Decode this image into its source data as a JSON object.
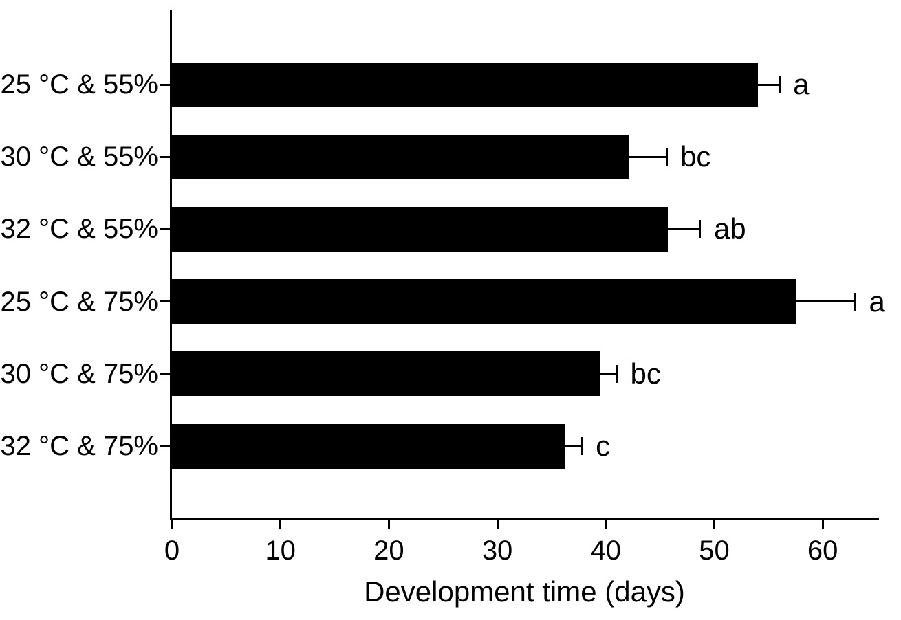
{
  "chart_data": {
    "type": "bar",
    "orientation": "horizontal",
    "title": "",
    "xlabel": "Development time (days)",
    "ylabel": "",
    "xlim": [
      0,
      65
    ],
    "xticks": [
      0,
      10,
      20,
      30,
      40,
      50,
      60
    ],
    "grid": false,
    "legend": "none",
    "bar_color": "#000000",
    "axis_color": "#000000",
    "categories": [
      "25 °C & 55%",
      "30 °C & 55%",
      "32 °C & 55%",
      "25 °C & 75%",
      "30 °C & 75%",
      "32 °C & 75%"
    ],
    "series": [
      {
        "name": "Development time (days)",
        "values": [
          54.0,
          42.2,
          45.7,
          57.6,
          39.5,
          36.2
        ],
        "errors_plus": [
          2.0,
          3.4,
          3.0,
          5.4,
          1.5,
          1.6
        ],
        "sig_letters": [
          "a",
          "bc",
          "ab",
          "a",
          "bc",
          "c"
        ]
      }
    ]
  }
}
